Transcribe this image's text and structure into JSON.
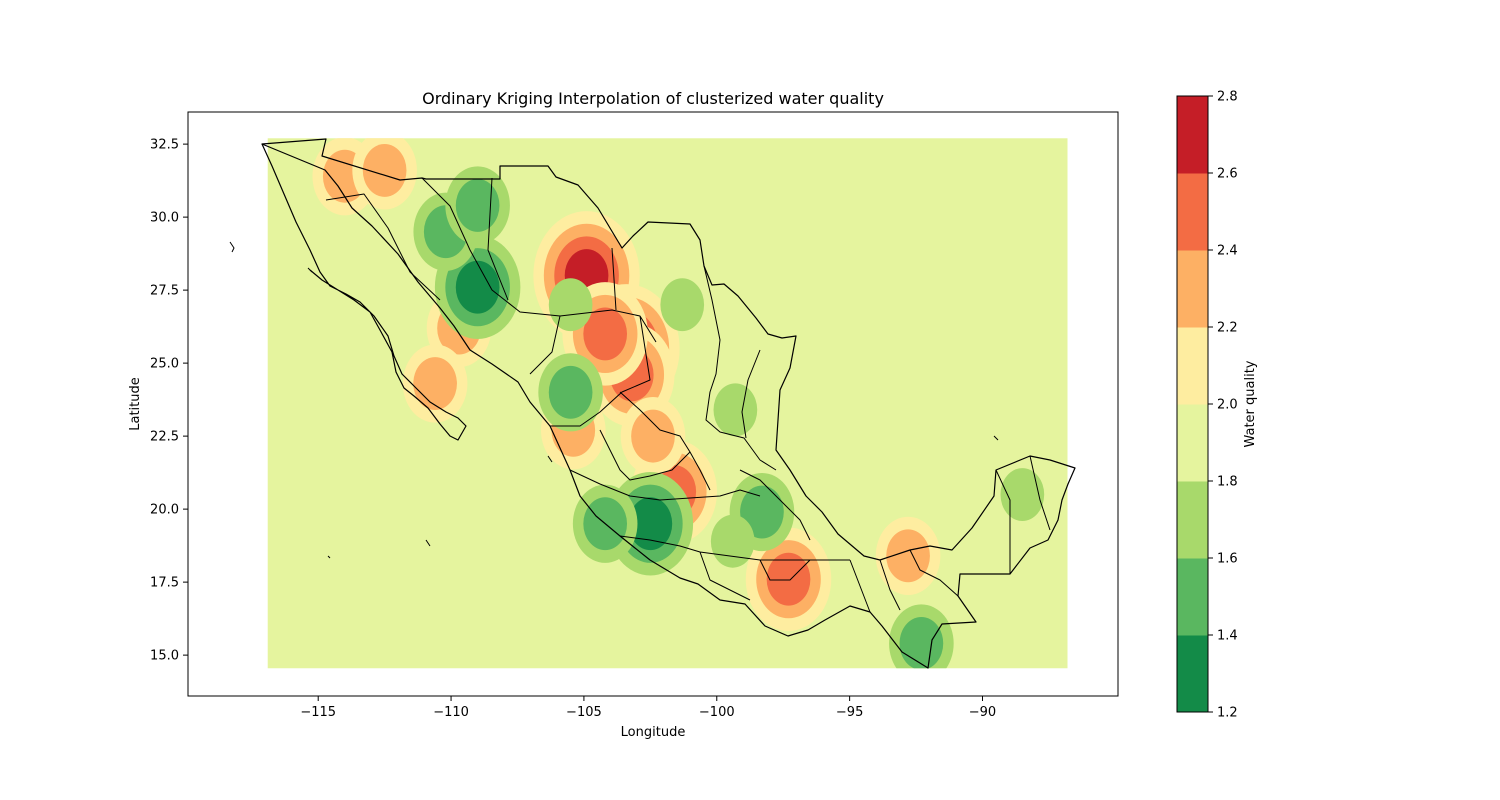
{
  "chart_data": {
    "type": "heatmap",
    "title": "Ordinary Kriging Interpolation of clusterized water quality",
    "xlabel": "Longitude",
    "ylabel": "Latitude",
    "xlim": [
      -119.9,
      -84.9
    ],
    "ylim": [
      13.6,
      33.6
    ],
    "x_ticks": [
      -115,
      -110,
      -105,
      -100,
      -95,
      -90
    ],
    "x_tick_labels": [
      "−115",
      "−110",
      "−105",
      "−100",
      "−95",
      "−90"
    ],
    "y_ticks": [
      15.0,
      17.5,
      20.0,
      22.5,
      25.0,
      27.5,
      30.0,
      32.5
    ],
    "y_tick_labels": [
      "15.0",
      "17.5",
      "20.0",
      "22.5",
      "25.0",
      "27.5",
      "30.0",
      "32.5"
    ],
    "grid_extent": {
      "lon": [
        -116.9,
        -86.8
      ],
      "lat": [
        14.55,
        32.7
      ]
    },
    "background_value": 1.9,
    "colorbar": {
      "label": "Water quality",
      "levels": [
        1.2,
        1.4,
        1.6,
        1.8,
        2.0,
        2.2,
        2.4,
        2.6,
        2.8
      ],
      "level_labels": [
        "1.2",
        "1.4",
        "1.6",
        "1.8",
        "2.0",
        "2.2",
        "2.4",
        "2.6",
        "2.8"
      ],
      "colors": [
        "#138b48",
        "#5ab760",
        "#a8d96b",
        "#e5f49e",
        "#feeda0",
        "#fdb064",
        "#f36c44",
        "#c51e27"
      ]
    },
    "hotspots": [
      {
        "lon": -104.9,
        "lat": 28.0,
        "value": 2.7
      },
      {
        "lon": -103.4,
        "lat": 25.5,
        "value": 2.65
      },
      {
        "lon": -103.2,
        "lat": 24.6,
        "value": 2.5
      },
      {
        "lon": -104.2,
        "lat": 26.0,
        "value": 2.4
      },
      {
        "lon": -97.3,
        "lat": 17.6,
        "value": 2.5
      },
      {
        "lon": -101.6,
        "lat": 20.6,
        "value": 2.5
      },
      {
        "lon": -109.7,
        "lat": 26.2,
        "value": 2.3
      },
      {
        "lon": -110.6,
        "lat": 24.3,
        "value": 2.3
      },
      {
        "lon": -114.0,
        "lat": 31.4,
        "value": 2.3
      },
      {
        "lon": -112.5,
        "lat": 31.6,
        "value": 2.3
      },
      {
        "lon": -105.4,
        "lat": 22.7,
        "value": 2.3
      },
      {
        "lon": -102.4,
        "lat": 22.5,
        "value": 2.3
      },
      {
        "lon": -92.8,
        "lat": 18.4,
        "value": 2.35
      },
      {
        "lon": -109.0,
        "lat": 27.6,
        "value": 1.3
      },
      {
        "lon": -102.5,
        "lat": 19.5,
        "value": 1.3
      },
      {
        "lon": -104.2,
        "lat": 19.5,
        "value": 1.55
      },
      {
        "lon": -98.3,
        "lat": 19.9,
        "value": 1.45
      },
      {
        "lon": -105.5,
        "lat": 24.0,
        "value": 1.5
      },
      {
        "lon": -110.2,
        "lat": 29.5,
        "value": 1.5
      },
      {
        "lon": -109.0,
        "lat": 30.4,
        "value": 1.55
      },
      {
        "lon": -99.4,
        "lat": 18.9,
        "value": 1.6
      },
      {
        "lon": -92.3,
        "lat": 15.4,
        "value": 1.5
      },
      {
        "lon": -88.5,
        "lat": 20.5,
        "value": 1.65
      },
      {
        "lon": -99.3,
        "lat": 23.4,
        "value": 1.65
      },
      {
        "lon": -101.3,
        "lat": 27.0,
        "value": 1.7
      },
      {
        "lon": -105.5,
        "lat": 27.0,
        "value": 1.7
      }
    ]
  }
}
